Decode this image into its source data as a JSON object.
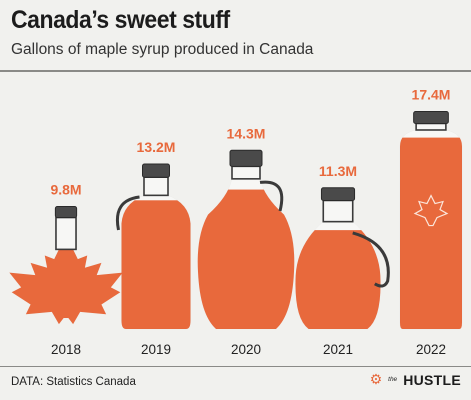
{
  "header": {
    "title": "Canada’s sweet stuff",
    "subtitle": "Gallons of maple syrup produced in Canada"
  },
  "footer": {
    "source": "DATA: Statistics Canada",
    "brand_small": "the",
    "brand_name": "HUSTLE",
    "brand_icon": "hubspot-sprocket-icon"
  },
  "colors": {
    "syrup": "#e8693c",
    "bottle_outline": "#3a3a3a",
    "value_label": "#e8693c",
    "background": "#f1f1ee"
  },
  "chart_data": {
    "type": "bar",
    "categories": [
      "2018",
      "2019",
      "2020",
      "2021",
      "2022"
    ],
    "values": [
      9.8,
      13.2,
      14.3,
      11.3,
      17.4
    ],
    "value_labels": [
      "9.8M",
      "13.2M",
      "14.3M",
      "11.3M",
      "17.4M"
    ],
    "unit": "M gallons",
    "mark_shapes": [
      "maple-leaf-bottle",
      "jug-bottle",
      "round-bottle",
      "handled-flask",
      "tall-square-bottle"
    ]
  }
}
